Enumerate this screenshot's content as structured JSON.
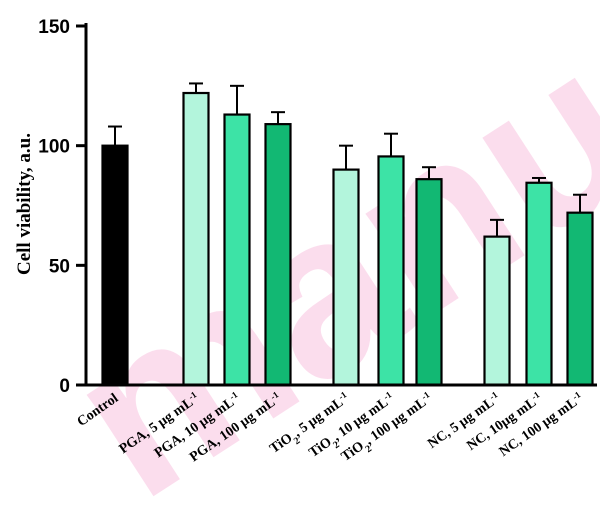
{
  "chart_data": {
    "type": "bar",
    "ylabel": "Cell viability, a.u.",
    "ylim": [
      0,
      150
    ],
    "yticks": [
      "0",
      "50",
      "100",
      "150"
    ],
    "grid": false,
    "categories": [
      {
        "text": "Control"
      },
      {
        "text": "PGA, 5 μg mL",
        "sup": "-1"
      },
      {
        "text": "PGA, 10 μg mL",
        "sup": "-1"
      },
      {
        "text": "PGA, 100 μg mL",
        "sup": "-1"
      },
      {
        "text": "TiO",
        "sub": "2",
        "text2": ", 5 μg mL",
        "sup": "-1"
      },
      {
        "text": "TiO",
        "sub": "2",
        "text2": ", 10 μg mL",
        "sup": "-1"
      },
      {
        "text": "TiO",
        "sub": "2",
        "text2": ", 100 μg mL",
        "sup": "-1"
      },
      {
        "text": "NC, 5 μg mL",
        "sup": "-1"
      },
      {
        "text": "NC, 10μg mL",
        "sup": "-1"
      },
      {
        "text": "NC, 100 μg mL",
        "sup": "-1"
      }
    ],
    "values": [
      100,
      122,
      113,
      109,
      90,
      95.5,
      86,
      62,
      84.5,
      72
    ],
    "errors": [
      8,
      4,
      12,
      5,
      10,
      9.5,
      5,
      7,
      2,
      7.5
    ],
    "colors": [
      "#000000",
      "#b3f5dc",
      "#3de3a6",
      "#12b873",
      "#b3f5dc",
      "#3de3a6",
      "#12b873",
      "#b3f5dc",
      "#3de3a6",
      "#12b873"
    ],
    "watermark": "manu"
  }
}
